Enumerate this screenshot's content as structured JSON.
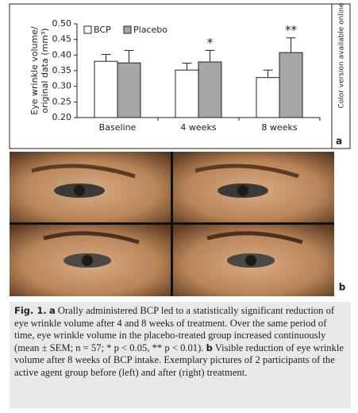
{
  "chart_data": {
    "type": "bar",
    "ylabel": [
      "Eye wrinkle volume/",
      "original data (mm³)"
    ],
    "categories": [
      "Baseline",
      "4 weeks",
      "8 weeks"
    ],
    "series": [
      {
        "name": "BCP",
        "color": "#ffffff",
        "values": [
          0.38,
          0.352,
          0.328
        ],
        "errors": [
          0.022,
          0.022,
          0.024
        ]
      },
      {
        "name": "Placebo",
        "color": "#a6a6a6",
        "values": [
          0.375,
          0.378,
          0.408
        ],
        "errors": [
          0.04,
          0.037,
          0.047
        ]
      }
    ],
    "significance": [
      null,
      "*",
      "**"
    ],
    "ylim": [
      0.2,
      0.5
    ],
    "yticks": [
      {
        "value": 0.2,
        "label": "0.20"
      },
      {
        "value": 0.25,
        "label": "0.25"
      },
      {
        "value": 0.3,
        "label": "0.30"
      },
      {
        "value": 0.35,
        "label": "0.35"
      },
      {
        "value": 0.4,
        "label": "0.40"
      },
      {
        "value": 0.45,
        "label": "0.45"
      },
      {
        "value": 0.5,
        "label": "0.50"
      }
    ],
    "grid": false
  },
  "panels": {
    "a": "a",
    "b": "b",
    "side_note": "Color version available online"
  },
  "caption": {
    "label": "Fig. 1.",
    "a_label": "a",
    "a_text": " Orally administered BCP led to a statistically significant reduction of eye wrinkle volume after 4 and 8 weeks of treatment. Over the same period of time, eye wrinkle volume in the placebo-treated group increased continuously (mean ± SEM; n = 57; * p < 0.05, ** p < 0.01). ",
    "b_label": "b",
    "b_text": " Visible reduction of eye wrinkle volume after 8 weeks of BCP intake. Exemplary pictures of 2 participants of the active agent group before (left) and after (right) treatment."
  }
}
